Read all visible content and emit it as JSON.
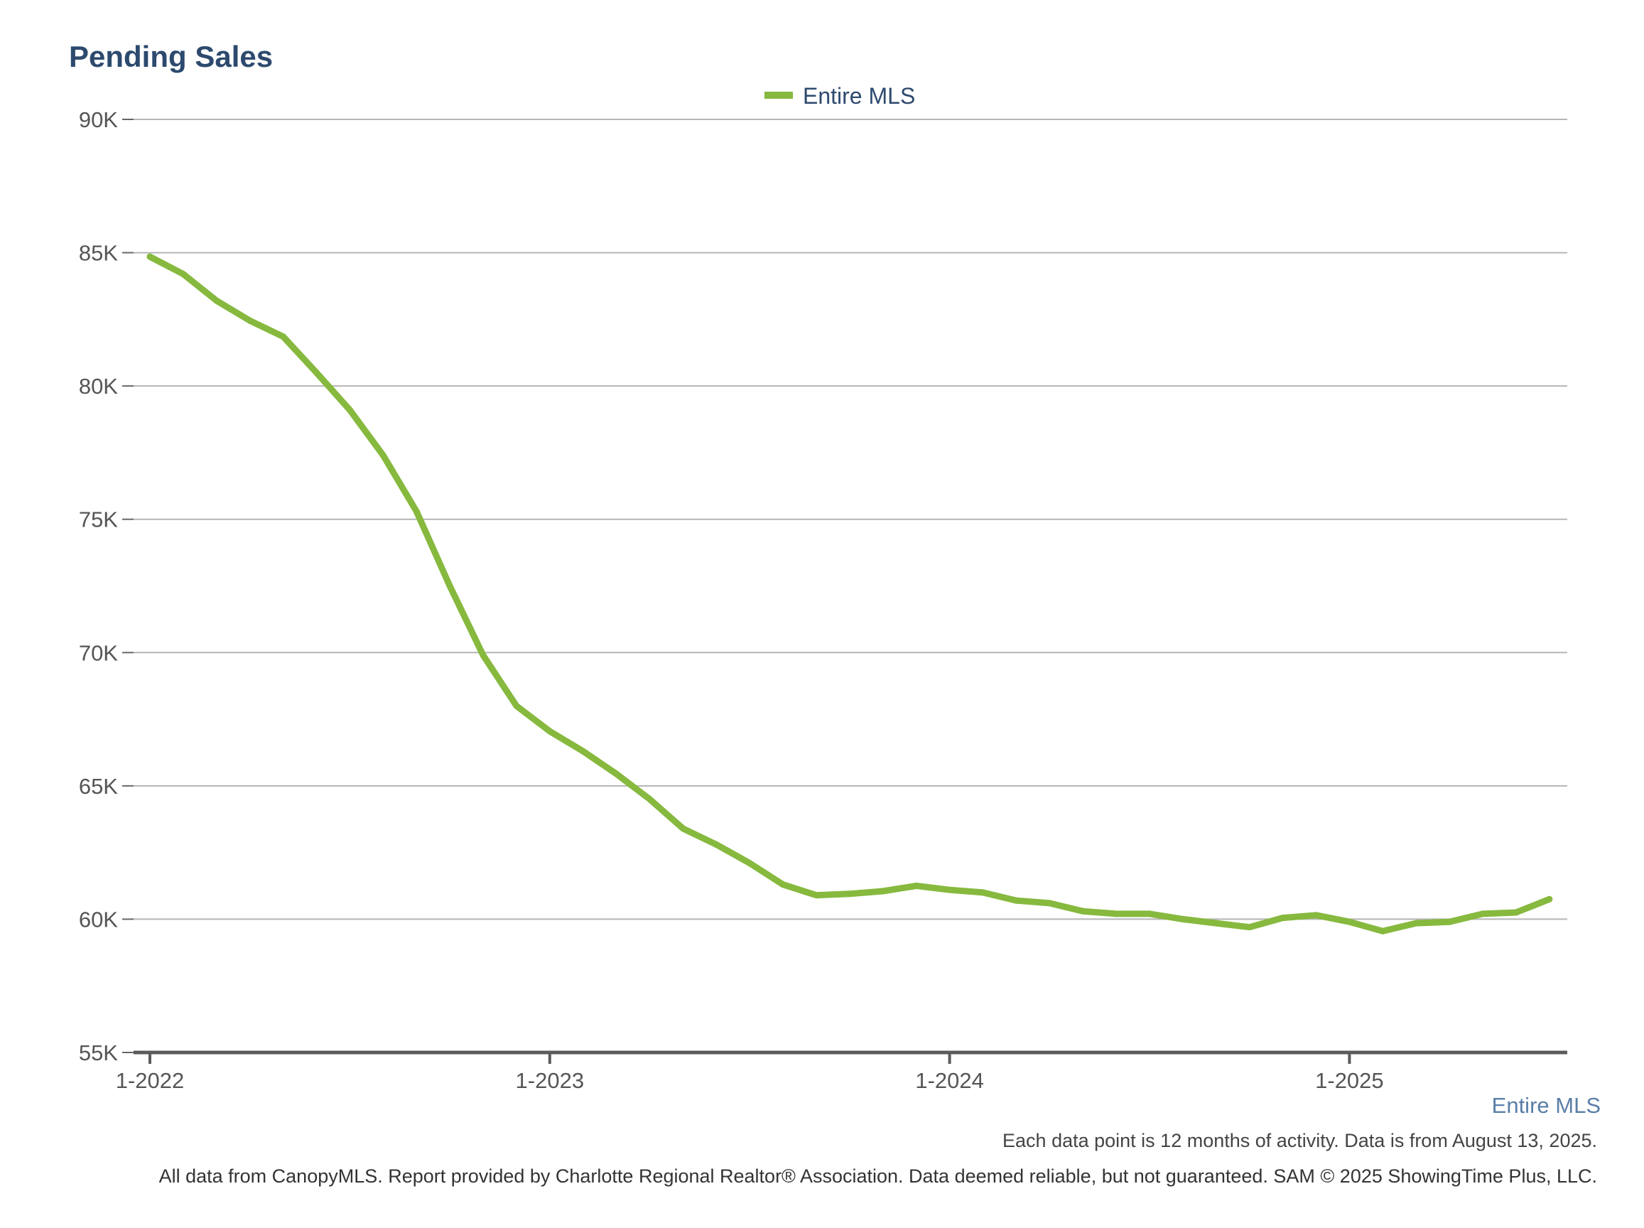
{
  "chart_data": {
    "type": "line",
    "title": "Pending Sales",
    "xlabel": "",
    "ylabel": "",
    "ylim": [
      55000,
      90000
    ],
    "y_ticks": [
      {
        "value": 55000,
        "label": "55K"
      },
      {
        "value": 60000,
        "label": "60K"
      },
      {
        "value": 65000,
        "label": "65K"
      },
      {
        "value": 70000,
        "label": "70K"
      },
      {
        "value": 75000,
        "label": "75K"
      },
      {
        "value": 80000,
        "label": "80K"
      },
      {
        "value": 85000,
        "label": "85K"
      },
      {
        "value": 90000,
        "label": "90K"
      }
    ],
    "x_ticks": [
      {
        "value": "1-2022",
        "label": "1-2022"
      },
      {
        "value": "1-2023",
        "label": "1-2023"
      },
      {
        "value": "1-2024",
        "label": "1-2024"
      },
      {
        "value": "1-2025",
        "label": "1-2025"
      }
    ],
    "grid": true,
    "legend": {
      "placement": "top-center"
    },
    "x": [
      "1-2022",
      "2-2022",
      "3-2022",
      "4-2022",
      "5-2022",
      "6-2022",
      "7-2022",
      "8-2022",
      "9-2022",
      "10-2022",
      "11-2022",
      "12-2022",
      "1-2023",
      "2-2023",
      "3-2023",
      "4-2023",
      "5-2023",
      "6-2023",
      "7-2023",
      "8-2023",
      "9-2023",
      "10-2023",
      "11-2023",
      "12-2023",
      "1-2024",
      "2-2024",
      "3-2024",
      "4-2024",
      "5-2024",
      "6-2024",
      "7-2024",
      "8-2024",
      "9-2024",
      "10-2024",
      "11-2024",
      "12-2024",
      "1-2025",
      "2-2025",
      "3-2025",
      "4-2025",
      "5-2025",
      "6-2025",
      "7-2025"
    ],
    "series": [
      {
        "name": "Entire MLS",
        "color": "#86b93e",
        "values": [
          84850,
          84200,
          83200,
          82450,
          81850,
          80500,
          79100,
          77400,
          75300,
          72500,
          69900,
          68000,
          67050,
          66300,
          65450,
          64500,
          63400,
          62800,
          62100,
          61300,
          60900,
          60950,
          61050,
          61250,
          61100,
          61000,
          60700,
          60600,
          60300,
          60200,
          60200,
          60000,
          59850,
          59700,
          60050,
          60150,
          59900,
          59550,
          59850,
          59900,
          60200,
          60250,
          60750
        ]
      }
    ]
  },
  "footer": {
    "series_label": "Entire MLS",
    "note": "Each data point is 12 months of activity. Data is from August 13, 2025.",
    "credit": "All data from CanopyMLS. Report provided by Charlotte Regional Realtor® Association. Data deemed reliable, but not guaranteed. SAM © 2025 ShowingTime Plus, LLC."
  }
}
